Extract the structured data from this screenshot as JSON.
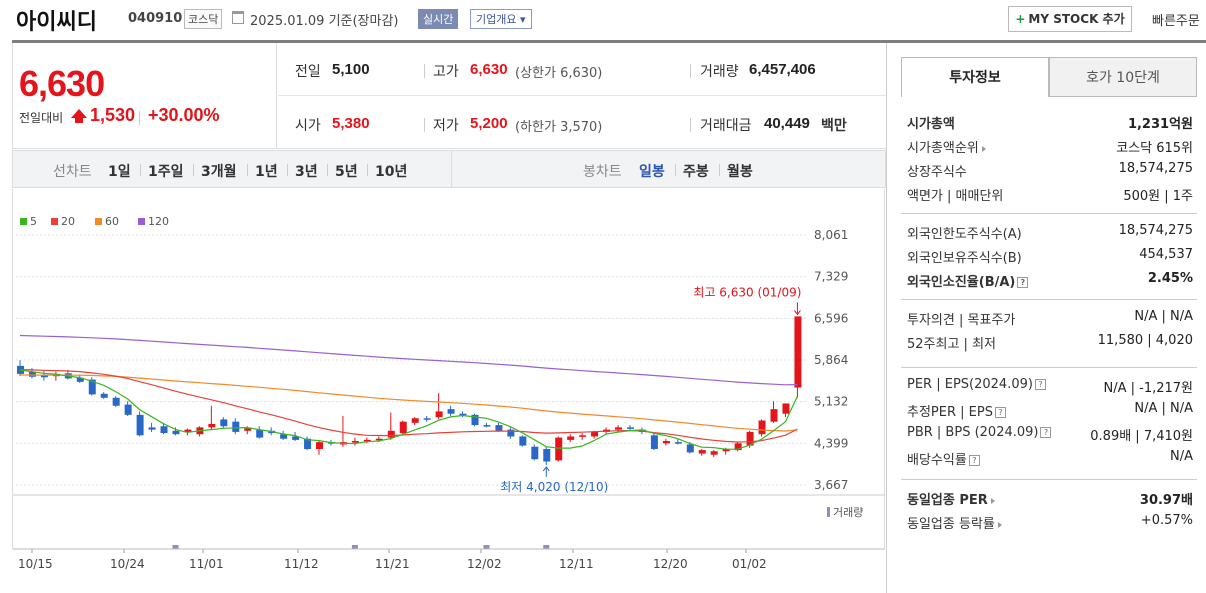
{
  "header": {
    "stock_name": "아이씨디",
    "stock_code": "040910",
    "market": "코스닥",
    "date_text": "2025.01.09  기준(장마감)",
    "realtime_label": "실시간",
    "company_overview_label": "기업개요 ▾",
    "mystock_label": "MY STOCK 추가",
    "mystock_plus": "+",
    "quick_order_label": "빠른주문"
  },
  "summary": {
    "current_price": "6,630",
    "change_label": "전일대비",
    "change_amount": "1,530",
    "change_rate": "+30.00%",
    "prev_close_label": "전일",
    "prev_close": "5,100",
    "high_label": "고가",
    "high": "6,630",
    "upper_limit": "(상한가 6,630)",
    "volume_label": "거래량",
    "volume": "6,457,406",
    "open_label": "시가",
    "open": "5,380",
    "low_label": "저가",
    "low": "5,200",
    "lower_limit": "(하한가 3,570)",
    "trade_value_label": "거래대금",
    "trade_value": "40,449",
    "trade_value_unit": "백만"
  },
  "period_bar": {
    "line_chart_label": "선차트",
    "periods": [
      "1일",
      "1주일",
      "3개월",
      "1년",
      "3년",
      "5년",
      "10년"
    ],
    "candle_chart_label": "봉차트",
    "candle_periods": [
      "일봉",
      "주봉",
      "월봉"
    ]
  },
  "chart_data": {
    "type": "candlestick",
    "legend": [
      {
        "name": "5",
        "color": "#3cb521"
      },
      {
        "name": "20",
        "color": "#e8413a"
      },
      {
        "name": "60",
        "color": "#f08a2a"
      },
      {
        "name": "120",
        "color": "#9a5fd0"
      }
    ],
    "y_ticks": [
      "8,061",
      "7,329",
      "6,596",
      "5,864",
      "5,132",
      "4,399",
      "3,667"
    ],
    "ylim": [
      3667,
      8061
    ],
    "x_ticks": [
      "10/15",
      "10/24",
      "11/01",
      "11/12",
      "11/21",
      "12/02",
      "12/11",
      "12/20",
      "01/02"
    ],
    "max_annotation": "최고 6,630 (01/09)",
    "min_annotation": "최저 4,020 (12/10)",
    "volume_label": "거래량",
    "candles": [
      {
        "o": 5760,
        "h": 5860,
        "l": 5580,
        "c": 5620
      },
      {
        "o": 5660,
        "h": 5720,
        "l": 5540,
        "c": 5570
      },
      {
        "o": 5600,
        "h": 5680,
        "l": 5500,
        "c": 5560
      },
      {
        "o": 5580,
        "h": 5660,
        "l": 5500,
        "c": 5620
      },
      {
        "o": 5630,
        "h": 5690,
        "l": 5520,
        "c": 5540
      },
      {
        "o": 5550,
        "h": 5610,
        "l": 5460,
        "c": 5480
      },
      {
        "o": 5520,
        "h": 5560,
        "l": 5240,
        "c": 5260
      },
      {
        "o": 5270,
        "h": 5300,
        "l": 5180,
        "c": 5200
      },
      {
        "o": 5200,
        "h": 5230,
        "l": 5040,
        "c": 5060
      },
      {
        "o": 5080,
        "h": 5140,
        "l": 4880,
        "c": 4900
      },
      {
        "o": 4900,
        "h": 4960,
        "l": 4520,
        "c": 4540
      },
      {
        "o": 4680,
        "h": 4760,
        "l": 4600,
        "c": 4640
      },
      {
        "o": 4700,
        "h": 4760,
        "l": 4560,
        "c": 4580
      },
      {
        "o": 4620,
        "h": 4680,
        "l": 4540,
        "c": 4560
      },
      {
        "o": 4600,
        "h": 4660,
        "l": 4540,
        "c": 4640
      },
      {
        "o": 4560,
        "h": 4700,
        "l": 4520,
        "c": 4680
      },
      {
        "o": 4680,
        "h": 5060,
        "l": 4640,
        "c": 4740
      },
      {
        "o": 4820,
        "h": 4860,
        "l": 4660,
        "c": 4700
      },
      {
        "o": 4780,
        "h": 4840,
        "l": 4560,
        "c": 4600
      },
      {
        "o": 4620,
        "h": 4700,
        "l": 4560,
        "c": 4660
      },
      {
        "o": 4640,
        "h": 4700,
        "l": 4480,
        "c": 4500
      },
      {
        "o": 4620,
        "h": 4680,
        "l": 4540,
        "c": 4580
      },
      {
        "o": 4560,
        "h": 4620,
        "l": 4460,
        "c": 4480
      },
      {
        "o": 4520,
        "h": 4600,
        "l": 4440,
        "c": 4460
      },
      {
        "o": 4480,
        "h": 4520,
        "l": 4280,
        "c": 4300
      },
      {
        "o": 4300,
        "h": 4440,
        "l": 4200,
        "c": 4420
      },
      {
        "o": 4420,
        "h": 4460,
        "l": 4360,
        "c": 4400
      },
      {
        "o": 4380,
        "h": 4880,
        "l": 4340,
        "c": 4420
      },
      {
        "o": 4420,
        "h": 4500,
        "l": 4360,
        "c": 4440
      },
      {
        "o": 4440,
        "h": 4500,
        "l": 4400,
        "c": 4460
      },
      {
        "o": 4460,
        "h": 4520,
        "l": 4420,
        "c": 4480
      },
      {
        "o": 4500,
        "h": 4940,
        "l": 4460,
        "c": 4620
      },
      {
        "o": 4580,
        "h": 4800,
        "l": 4540,
        "c": 4780
      },
      {
        "o": 4760,
        "h": 4860,
        "l": 4720,
        "c": 4840
      },
      {
        "o": 4840,
        "h": 4880,
        "l": 4780,
        "c": 4820
      },
      {
        "o": 4860,
        "h": 5280,
        "l": 4820,
        "c": 4960
      },
      {
        "o": 5000,
        "h": 5060,
        "l": 4880,
        "c": 4920
      },
      {
        "o": 4920,
        "h": 4960,
        "l": 4860,
        "c": 4900
      },
      {
        "o": 4900,
        "h": 4920,
        "l": 4700,
        "c": 4720
      },
      {
        "o": 4720,
        "h": 4760,
        "l": 4680,
        "c": 4700
      },
      {
        "o": 4720,
        "h": 4760,
        "l": 4600,
        "c": 4620
      },
      {
        "o": 4640,
        "h": 4680,
        "l": 4480,
        "c": 4520
      },
      {
        "o": 4520,
        "h": 4540,
        "l": 4340,
        "c": 4360
      },
      {
        "o": 4340,
        "h": 4380,
        "l": 4100,
        "c": 4120
      },
      {
        "o": 4300,
        "h": 4340,
        "l": 4020,
        "c": 4080
      },
      {
        "o": 4100,
        "h": 4520,
        "l": 4080,
        "c": 4500
      },
      {
        "o": 4460,
        "h": 4560,
        "l": 4420,
        "c": 4520
      },
      {
        "o": 4520,
        "h": 4580,
        "l": 4460,
        "c": 4540
      },
      {
        "o": 4520,
        "h": 4620,
        "l": 4480,
        "c": 4600
      },
      {
        "o": 4600,
        "h": 4680,
        "l": 4560,
        "c": 4640
      },
      {
        "o": 4640,
        "h": 4720,
        "l": 4600,
        "c": 4680
      },
      {
        "o": 4680,
        "h": 4720,
        "l": 4620,
        "c": 4660
      },
      {
        "o": 4640,
        "h": 4680,
        "l": 4560,
        "c": 4600
      },
      {
        "o": 4540,
        "h": 4580,
        "l": 4280,
        "c": 4300
      },
      {
        "o": 4400,
        "h": 4480,
        "l": 4360,
        "c": 4440
      },
      {
        "o": 4420,
        "h": 4480,
        "l": 4380,
        "c": 4400
      },
      {
        "o": 4380,
        "h": 4420,
        "l": 4220,
        "c": 4240
      },
      {
        "o": 4220,
        "h": 4300,
        "l": 4180,
        "c": 4280
      },
      {
        "o": 4200,
        "h": 4280,
        "l": 4160,
        "c": 4260
      },
      {
        "o": 4260,
        "h": 4320,
        "l": 4200,
        "c": 4300
      },
      {
        "o": 4280,
        "h": 4420,
        "l": 4260,
        "c": 4400
      },
      {
        "o": 4360,
        "h": 4620,
        "l": 4320,
        "c": 4600
      },
      {
        "o": 4560,
        "h": 4820,
        "l": 4520,
        "c": 4800
      },
      {
        "o": 4780,
        "h": 5140,
        "l": 4760,
        "c": 5000
      },
      {
        "o": 4920,
        "h": 5100,
        "l": 4860,
        "c": 5100
      },
      {
        "o": 5380,
        "h": 6630,
        "l": 5200,
        "c": 6630
      }
    ],
    "volume_peak_index": 66
  },
  "right_panel": {
    "tabs": [
      "투자정보",
      "호가 10단계"
    ],
    "group1": [
      {
        "k": "시가총액",
        "v": "1,231억원",
        "bold": true
      },
      {
        "k": "시가총액순위",
        "v": "코스닥 615위",
        "arrow": true
      },
      {
        "k": "상장주식수",
        "v": "18,574,275"
      },
      {
        "k": "액면가 | 매매단위",
        "v": "500원 | 1주"
      }
    ],
    "group2": [
      {
        "k": "외국인한도주식수(A)",
        "v": "18,574,275"
      },
      {
        "k": "외국인보유주식수(B)",
        "v": "454,537"
      },
      {
        "k": "외국인소진율(B/A)",
        "v": "2.45%",
        "bold": true,
        "help": true
      }
    ],
    "group3": [
      {
        "k": "투자의견 | 목표주가",
        "v": "N/A | N/A"
      },
      {
        "k": "52주최고 | 최저",
        "v": "11,580 | 4,020"
      }
    ],
    "group4": [
      {
        "k": "PER | EPS(2024.09)",
        "v": "N/A | -1,217원",
        "help": true
      },
      {
        "k": "추정PER | EPS",
        "v": "N/A | N/A",
        "help": true
      },
      {
        "k": "PBR | BPS (2024.09)",
        "v": "0.89배 | 7,410원",
        "help": true
      },
      {
        "k": "배당수익률",
        "v": "N/A",
        "help": true
      }
    ],
    "group5": [
      {
        "k": "동일업종 PER",
        "v": "30.97배",
        "bold": true,
        "arrow": true
      },
      {
        "k": "동일업종 등락률",
        "v": "+0.57%",
        "arrow": true,
        "red": true
      }
    ]
  },
  "colors": {
    "up": "#e4141a",
    "down": "#2a68c8",
    "accent": "#3a55a0"
  }
}
